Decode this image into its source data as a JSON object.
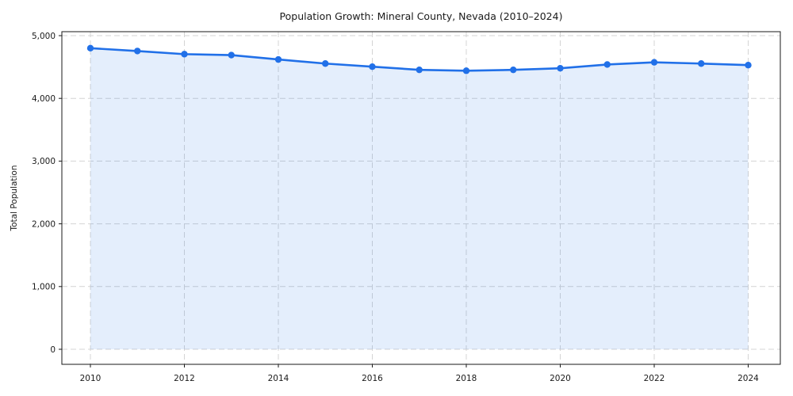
{
  "chart_data": {
    "type": "line",
    "title": "Population Growth: Mineral County, Nevada (2010–2024)",
    "xlabel": "",
    "ylabel": "Total Population",
    "x": [
      2010,
      2011,
      2012,
      2013,
      2014,
      2015,
      2016,
      2017,
      2018,
      2019,
      2020,
      2021,
      2022,
      2023,
      2024
    ],
    "series": [
      {
        "name": "Total Population",
        "values": [
          4800,
          4755,
          4705,
          4690,
          4620,
          4555,
          4505,
          4455,
          4440,
          4455,
          4480,
          4540,
          4575,
          4555,
          4530
        ]
      }
    ],
    "ylim": [
      0,
      5000
    ],
    "ytick_values": [
      0,
      1000,
      2000,
      3000,
      4000,
      5000
    ],
    "ytick_labels": [
      "0",
      "1,000",
      "2,000",
      "3,000",
      "4,000",
      "5,000"
    ],
    "xtick_values": [
      2010,
      2012,
      2014,
      2016,
      2018,
      2020,
      2022,
      2024
    ],
    "xtick_labels": [
      "2010",
      "2012",
      "2014",
      "2016",
      "2018",
      "2020",
      "2022",
      "2024"
    ],
    "grid": true,
    "grid_style": "dashed",
    "legend_position": "none",
    "marker": "circle",
    "colors": {
      "line": "#2170e8",
      "marker": "#2170e8",
      "area_fill": "#2170e8",
      "area_fill_opacity": 0.12,
      "grid": "#d4d4d4",
      "spine": "#1a1a1a",
      "text": "#1a1a1a",
      "background": "#ffffff"
    }
  }
}
